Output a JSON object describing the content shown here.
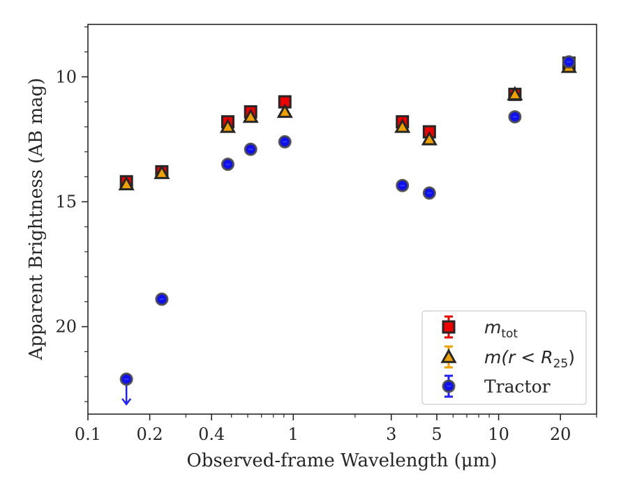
{
  "chart_data": {
    "type": "scatter",
    "title": "",
    "xlabel": "Observed-frame Wavelength (μm)",
    "ylabel": "Apparent Brightness (AB mag)",
    "xscale": "log",
    "xlim": [
      0.1,
      30
    ],
    "ylim": [
      23.5,
      7.9
    ],
    "y_inverted": true,
    "x_ticks": [
      {
        "value": 0.1,
        "label": "0.1"
      },
      {
        "value": 0.2,
        "label": "0.2"
      },
      {
        "value": 0.4,
        "label": "0.4"
      },
      {
        "value": 1,
        "label": "1"
      },
      {
        "value": 3,
        "label": "3"
      },
      {
        "value": 5,
        "label": "5"
      },
      {
        "value": 10,
        "label": "10"
      },
      {
        "value": 20,
        "label": "20"
      }
    ],
    "y_ticks": [
      {
        "value": 10,
        "label": "10"
      },
      {
        "value": 15,
        "label": "15"
      },
      {
        "value": 20,
        "label": "20"
      }
    ],
    "grid": false,
    "legend_position": "bottom-right",
    "series": [
      {
        "name": "m_tot",
        "legend_label": {
          "base": "m",
          "sub": "tot"
        },
        "marker": "square",
        "color": "#ee0000",
        "edge_color": "#262626",
        "x": [
          0.154,
          0.229,
          0.48,
          0.62,
          0.91,
          3.4,
          4.6,
          12.0,
          22.0
        ],
        "y": [
          14.2,
          13.8,
          11.8,
          11.4,
          11.0,
          11.8,
          12.2,
          10.7,
          9.45
        ]
      },
      {
        "name": "m(r < R25)",
        "legend_label": {
          "base": "m(r < R",
          "sub": "25",
          "tail": ")"
        },
        "marker": "triangle",
        "color": "#f0a000",
        "edge_color": "#262626",
        "x": [
          0.154,
          0.229,
          0.48,
          0.62,
          0.91,
          3.4,
          4.6,
          12.0,
          22.0
        ],
        "y": [
          14.3,
          13.85,
          12.0,
          11.6,
          11.4,
          12.0,
          12.5,
          10.7,
          9.6
        ]
      },
      {
        "name": "Tractor",
        "legend_label": {
          "base": "Tractor"
        },
        "marker": "circle",
        "color": "#1010ee",
        "edge_color": "#4a4a4a",
        "x": [
          0.154,
          0.229,
          0.48,
          0.62,
          0.91,
          3.4,
          4.6,
          12.0,
          22.0
        ],
        "y": [
          22.1,
          18.9,
          13.5,
          12.9,
          12.6,
          14.35,
          14.65,
          11.6,
          9.4
        ],
        "upper_limit_index": 0
      }
    ]
  }
}
